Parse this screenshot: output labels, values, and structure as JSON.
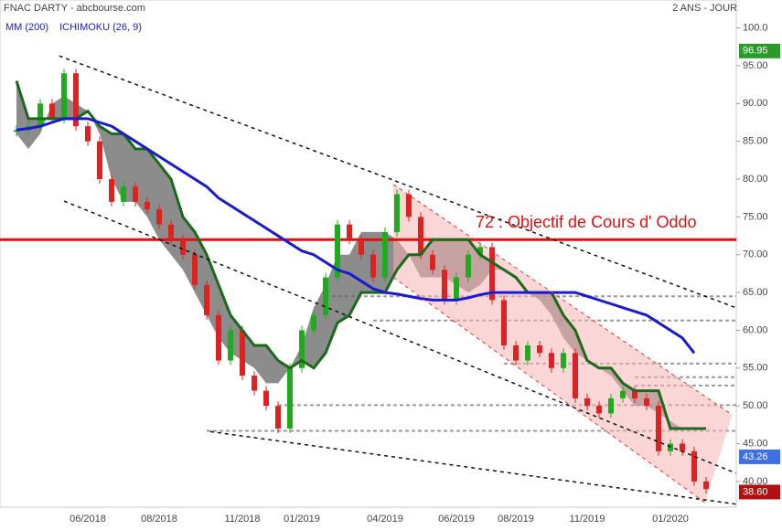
{
  "chart_data": {
    "type": "candlestick",
    "title": "FNAC DARTY - abcbourse.com",
    "period": "2 ANS - JOUR",
    "categories": [
      null,
      null,
      null,
      null,
      null,
      null,
      "06/2018",
      null,
      null,
      null,
      null,
      null,
      "08/2018",
      null,
      null,
      null,
      null,
      null,
      null,
      "11/2018",
      null,
      null,
      null,
      null,
      "01/2019",
      null,
      null,
      null,
      null,
      null,
      null,
      "04/2019",
      null,
      null,
      null,
      null,
      null,
      "06/2019",
      null,
      null,
      null,
      null,
      "08/2019",
      null,
      null,
      null,
      null,
      null,
      "11/2019",
      null,
      null,
      null,
      null,
      null,
      null,
      "01/2020",
      null,
      null,
      null
    ],
    "price": {
      "color_up": "#1faa1f",
      "color_down": "#d22",
      "values": [
        86.5,
        87,
        90,
        88,
        94,
        87,
        85,
        80,
        77,
        79,
        77,
        76,
        74,
        72,
        70,
        66,
        62,
        56,
        60,
        54,
        52,
        50,
        47,
        55,
        60,
        62,
        67,
        74,
        72,
        70,
        67,
        73,
        78,
        75,
        70,
        68,
        64,
        67,
        70,
        71,
        64,
        58,
        56,
        58,
        57,
        55,
        57,
        51,
        50,
        49,
        51,
        52,
        51,
        50,
        44,
        45,
        44,
        40,
        39
      ]
    },
    "series": [
      {
        "name": "MM (200)",
        "color": "#1a1ad0",
        "values": [
          86.5,
          86.7,
          87,
          87.5,
          88,
          88,
          88,
          87.5,
          87,
          86,
          85,
          84,
          83,
          82,
          81,
          80,
          79,
          77.5,
          76.5,
          75.5,
          74.5,
          73.5,
          72.5,
          71.5,
          70.5,
          70,
          69,
          68,
          67.5,
          66.5,
          65.5,
          65,
          64.8,
          64.5,
          64.2,
          64,
          64,
          64,
          64.3,
          64.7,
          65,
          65,
          65,
          65,
          65,
          65,
          65,
          65,
          64.5,
          64,
          63.5,
          63,
          62.5,
          62,
          61,
          60,
          59,
          57,
          null
        ]
      },
      {
        "name": "ICHIMOKU (26, 9)",
        "color": "#1a6a1a",
        "cloud_color": "#666",
        "values": [
          93,
          88,
          88,
          88,
          88,
          88,
          89,
          87,
          86,
          86,
          84,
          84,
          82,
          80,
          75,
          73,
          70,
          66,
          62,
          60,
          58,
          58,
          56,
          55,
          56,
          55,
          57,
          61,
          62,
          65,
          65,
          65,
          68,
          70,
          70,
          72,
          72,
          72,
          72,
          70,
          69,
          68,
          67,
          65,
          65,
          65,
          62,
          60,
          56,
          55,
          55,
          53,
          52,
          52,
          52,
          47,
          47,
          47,
          47
        ],
        "span_b": [
          86,
          84,
          86,
          90,
          91,
          90,
          89,
          86,
          80,
          77,
          77,
          75,
          72,
          70,
          68,
          65,
          62,
          59,
          57,
          56,
          55,
          53,
          53,
          55,
          58,
          63,
          66,
          70,
          70,
          73,
          73,
          73,
          72,
          70,
          67,
          67,
          67,
          66,
          65,
          66,
          68,
          68,
          67,
          65,
          64,
          62,
          59,
          57,
          56,
          55,
          54,
          52,
          50,
          50,
          49,
          48,
          47,
          47,
          47
        ]
      }
    ],
    "target": {
      "value": 72,
      "label": "72 : Objectif de Cours d' Oddo",
      "color": "#e01010"
    },
    "levels": [
      {
        "value": 64.5,
        "from": 26
      },
      {
        "value": 61.3,
        "from": 30
      },
      {
        "value": 55.6,
        "from": 41
      },
      {
        "value": 53.8,
        "from": 52
      },
      {
        "value": 52.7,
        "from": 52
      },
      {
        "value": 50.1,
        "from": 22
      },
      {
        "value": 46.7,
        "from": 16
      }
    ],
    "trendlines": [
      {
        "x": [
          3.6,
          60.5
        ],
        "values": [
          96.3,
          63
        ],
        "color": "#111"
      },
      {
        "x": [
          4,
          60.5
        ],
        "values": [
          77.1,
          41.1
        ],
        "color": "#111"
      },
      {
        "x": [
          16.3,
          60.5
        ],
        "values": [
          46.6,
          37
        ],
        "color": "#111"
      },
      {
        "x": [
          31.7,
          60.2
        ],
        "values": [
          79.3,
          48.8
        ],
        "color": "#e33"
      },
      {
        "x": [
          31.7,
          57.9
        ],
        "values": [
          67,
          37.2
        ],
        "color": "#e33"
      }
    ],
    "price_tags": [
      {
        "value": 96.95,
        "color": "#2a9a2a"
      },
      {
        "value": 43.26,
        "color": "#3d6fe6"
      },
      {
        "value": {
          "value": 38.6,
          "label": "38.60"
        },
        "color": "#b01010"
      }
    ],
    "ylim": [
      36.6,
      103.7
    ],
    "yticks": [
      {
        "value": 40,
        "label": "40.00"
      },
      {
        "value": 45,
        "label": "45.00"
      },
      {
        "value": 50,
        "label": "50.00"
      },
      {
        "value": 55,
        "label": "55.00"
      },
      {
        "value": 60,
        "label": "60.00"
      },
      {
        "value": 65,
        "label": "65.00"
      },
      {
        "value": 70,
        "label": "70.00"
      },
      {
        "value": 75,
        "label": "75.00"
      },
      {
        "value": 80,
        "label": "80.00"
      },
      {
        "value": 85,
        "label": "85.00"
      },
      {
        "value": 90,
        "label": "90.00"
      },
      {
        "value": 95,
        "label": "95.00"
      },
      {
        "value": 100,
        "label": "100.0"
      }
    ]
  }
}
